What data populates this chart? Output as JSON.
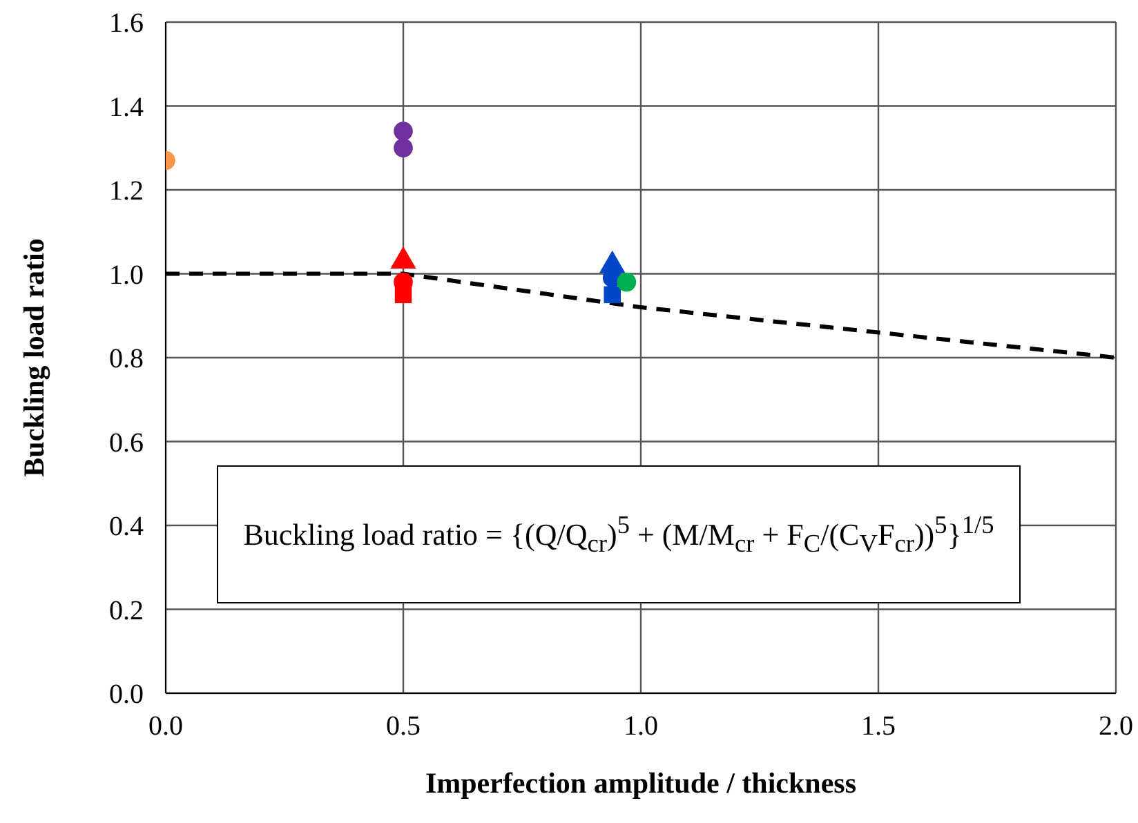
{
  "chart_data": {
    "type": "scatter",
    "xlabel": "Imperfection amplitude / thickness",
    "ylabel": "Buckling load ratio",
    "xlim": [
      0,
      2
    ],
    "xticks": [
      {
        "value": 0,
        "label": "0.0"
      },
      {
        "value": 0.5,
        "label": "0.5"
      },
      {
        "value": 1,
        "label": "1.0"
      },
      {
        "value": 1.5,
        "label": "1.5"
      },
      {
        "value": 2,
        "label": "2.0"
      }
    ],
    "ylim": [
      0,
      1.6
    ],
    "yticks": [
      {
        "value": 0,
        "label": "0.0"
      },
      {
        "value": 0.2,
        "label": "0.2"
      },
      {
        "value": 0.4,
        "label": "0.4"
      },
      {
        "value": 0.6,
        "label": "0.6"
      },
      {
        "value": 0.8,
        "label": "0.8"
      },
      {
        "value": 1,
        "label": "1.0"
      },
      {
        "value": 1.2,
        "label": "1.2"
      },
      {
        "value": 1.4,
        "label": "1.4"
      },
      {
        "value": 1.6,
        "label": "1.6"
      }
    ],
    "grid": true,
    "series": [
      {
        "type": "line",
        "color": "#000000",
        "line_style": "dashed",
        "marker": "none",
        "x": [
          0,
          0.5,
          1,
          1.5,
          2
        ],
        "values": [
          1,
          1,
          0.92,
          0.86,
          0.8
        ]
      },
      {
        "color": "#f79646",
        "marker": "circle",
        "x": [
          0
        ],
        "values": [
          1.27
        ]
      },
      {
        "color": "#7030a0",
        "marker": "circle",
        "x": [
          0.5,
          0.5
        ],
        "values": [
          1.34,
          1.3
        ]
      },
      {
        "color": "#ff0000",
        "marker": "triangle",
        "x": [
          0.5
        ],
        "values": [
          1.03
        ]
      },
      {
        "color": "#ff0000",
        "marker": "circle",
        "x": [
          0.5
        ],
        "values": [
          0.98
        ]
      },
      {
        "color": "#ff0000",
        "marker": "square",
        "x": [
          0.5
        ],
        "values": [
          0.95
        ]
      },
      {
        "color": "#0047c8",
        "marker": "triangle",
        "x": [
          0.94
        ],
        "values": [
          1.02
        ]
      },
      {
        "color": "#0047c8",
        "marker": "circle",
        "x": [
          0.94
        ],
        "values": [
          0.99
        ]
      },
      {
        "color": "#0047c8",
        "marker": "square",
        "x": [
          0.94
        ],
        "values": [
          0.95
        ]
      },
      {
        "color": "#00b050",
        "marker": "circle",
        "x": [
          0.97
        ],
        "values": [
          0.98
        ]
      }
    ],
    "annotations": [
      "Buckling load ratio = {(Q/Q$_{cr}$)$^{5}$ + (M/M$_{cr}$ + F$_{C}$/(C$_{V}$F$_{cr}$))$^{5}$}$^{1/5}$"
    ]
  }
}
